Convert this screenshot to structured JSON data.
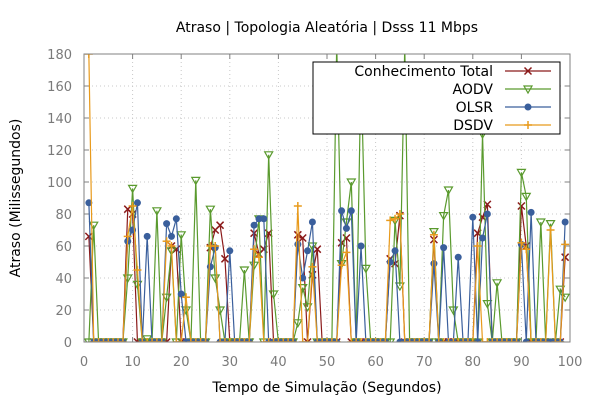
{
  "chart_data": {
    "type": "line",
    "title": "Atraso | Topologia Aleatória | Dsss 11 Mbps",
    "xlabel": "Tempo de Simulação (Segundos)",
    "ylabel": "Atraso (Milissegundos)",
    "xlim": [
      0,
      100
    ],
    "ylim": [
      0,
      180
    ],
    "xticks": [
      0,
      10,
      20,
      30,
      40,
      50,
      60,
      70,
      80,
      90,
      100
    ],
    "yticks": [
      0,
      20,
      40,
      60,
      80,
      100,
      120,
      140,
      160,
      180
    ],
    "grid": true,
    "legend_position": "top-right",
    "series": [
      {
        "name": "Conhecimento Total",
        "color": "#8b1a1a",
        "marker": "x",
        "x": [
          1,
          2,
          3,
          4,
          5,
          6,
          7,
          8,
          9,
          10,
          11,
          12,
          13,
          14,
          15,
          16,
          17,
          18,
          19,
          20,
          21,
          22,
          23,
          24,
          25,
          26,
          27,
          28,
          29,
          30,
          31,
          32,
          33,
          34,
          35,
          36,
          37,
          38,
          39,
          40,
          41,
          42,
          43,
          44,
          45,
          46,
          47,
          48,
          49,
          50,
          51,
          52,
          53,
          54,
          55,
          56,
          57,
          58,
          59,
          60,
          61,
          62,
          63,
          64,
          65,
          66,
          67,
          68,
          69,
          70,
          71,
          72,
          73,
          74,
          75,
          76,
          77,
          78,
          79,
          80,
          81,
          82,
          83,
          84,
          85,
          86,
          87,
          88,
          89,
          90,
          91,
          92,
          93,
          94,
          95,
          96,
          97,
          98,
          99
        ],
        "y": [
          66,
          0,
          0,
          0,
          0,
          0,
          0,
          0,
          83,
          80,
          0,
          0,
          0,
          0,
          0,
          0,
          0,
          60,
          58,
          0,
          0,
          0,
          0,
          0,
          0,
          59,
          70,
          73,
          52,
          0,
          0,
          0,
          0,
          0,
          68,
          55,
          58,
          68,
          0,
          0,
          0,
          0,
          0,
          67,
          65,
          0,
          42,
          58,
          0,
          0,
          0,
          0,
          62,
          65,
          0,
          0,
          0,
          0,
          0,
          0,
          0,
          0,
          52,
          49,
          79,
          0,
          0,
          0,
          0,
          0,
          0,
          64,
          0,
          0,
          0,
          0,
          0,
          0,
          0,
          0,
          68,
          78,
          86,
          0,
          0,
          0,
          0,
          0,
          0,
          85,
          60,
          0,
          0,
          0,
          0,
          0,
          0,
          0,
          53
        ]
      },
      {
        "name": "AODV",
        "color": "#5a9a2e",
        "marker": "triangle-down",
        "x": [
          1,
          2,
          3,
          4,
          5,
          6,
          7,
          8,
          9,
          10,
          11,
          12,
          13,
          14,
          15,
          16,
          17,
          18,
          19,
          20,
          21,
          22,
          23,
          24,
          25,
          26,
          27,
          28,
          29,
          30,
          31,
          32,
          33,
          34,
          35,
          36,
          37,
          38,
          39,
          40,
          41,
          42,
          43,
          44,
          45,
          46,
          47,
          48,
          49,
          50,
          51,
          52,
          53,
          54,
          55,
          56,
          57,
          58,
          59,
          60,
          61,
          62,
          63,
          64,
          65,
          66,
          67,
          68,
          69,
          70,
          71,
          72,
          73,
          74,
          75,
          76,
          77,
          78,
          79,
          80,
          81,
          82,
          83,
          84,
          85,
          86,
          87,
          88,
          89,
          90,
          91,
          92,
          93,
          94,
          95,
          96,
          97,
          98,
          99
        ],
        "y": [
          0,
          73,
          0,
          0,
          0,
          0,
          0,
          0,
          40,
          96,
          36,
          0,
          2,
          0,
          82,
          0,
          28,
          57,
          0,
          67,
          20,
          0,
          101,
          0,
          0,
          83,
          40,
          20,
          0,
          0,
          0,
          0,
          45,
          0,
          48,
          77,
          0,
          117,
          30,
          0,
          0,
          0,
          0,
          12,
          34,
          22,
          60,
          0,
          0,
          0,
          0,
          186,
          49,
          75,
          100,
          0,
          170,
          46,
          0,
          0,
          0,
          0,
          0,
          76,
          35,
          185,
          0,
          0,
          0,
          0,
          0,
          69,
          0,
          79,
          95,
          20,
          0,
          0,
          0,
          0,
          0,
          130,
          24,
          0,
          37,
          0,
          0,
          0,
          0,
          106,
          91,
          0,
          0,
          75,
          0,
          74,
          0,
          33,
          28
        ]
      },
      {
        "name": "OLSR",
        "color": "#3a5f9c",
        "marker": "circle",
        "x": [
          1,
          2,
          3,
          4,
          5,
          6,
          7,
          8,
          9,
          10,
          11,
          12,
          13,
          14,
          15,
          16,
          17,
          18,
          19,
          20,
          21,
          22,
          23,
          24,
          25,
          26,
          27,
          28,
          29,
          30,
          31,
          32,
          33,
          34,
          35,
          36,
          37,
          38,
          39,
          40,
          41,
          42,
          43,
          44,
          45,
          46,
          47,
          48,
          49,
          50,
          51,
          52,
          53,
          54,
          55,
          56,
          57,
          58,
          59,
          60,
          61,
          62,
          63,
          64,
          65,
          66,
          67,
          68,
          69,
          70,
          71,
          72,
          73,
          74,
          75,
          76,
          77,
          78,
          79,
          80,
          81,
          82,
          83,
          84,
          85,
          86,
          87,
          88,
          89,
          90,
          91,
          92,
          93,
          94,
          95,
          96,
          97,
          98,
          99
        ],
        "y": [
          87,
          0,
          0,
          0,
          0,
          0,
          0,
          0,
          63,
          70,
          87,
          0,
          66,
          0,
          0,
          0,
          74,
          66,
          77,
          30,
          0,
          0,
          0,
          0,
          0,
          47,
          59,
          0,
          0,
          57,
          0,
          0,
          0,
          0,
          73,
          77,
          77,
          0,
          0,
          0,
          0,
          0,
          0,
          61,
          40,
          57,
          75,
          0,
          0,
          0,
          0,
          0,
          82,
          71,
          82,
          0,
          60,
          0,
          0,
          0,
          0,
          0,
          50,
          57,
          0,
          0,
          0,
          0,
          0,
          0,
          0,
          49,
          0,
          59,
          0,
          0,
          53,
          0,
          0,
          78,
          0,
          65,
          80,
          0,
          0,
          0,
          0,
          0,
          0,
          61,
          0,
          81,
          0,
          0,
          0,
          0,
          0,
          0,
          75
        ]
      },
      {
        "name": "DSDV",
        "color": "#e89a1c",
        "marker": "plus",
        "x": [
          1,
          2,
          3,
          4,
          5,
          6,
          7,
          8,
          9,
          10,
          11,
          12,
          13,
          14,
          15,
          16,
          17,
          18,
          19,
          20,
          21,
          22,
          23,
          24,
          25,
          26,
          27,
          28,
          29,
          30,
          31,
          32,
          33,
          34,
          35,
          36,
          37,
          38,
          39,
          40,
          41,
          42,
          43,
          44,
          45,
          46,
          47,
          48,
          49,
          50,
          51,
          52,
          53,
          54,
          55,
          56,
          57,
          58,
          59,
          60,
          61,
          62,
          63,
          64,
          65,
          66,
          67,
          68,
          69,
          70,
          71,
          72,
          73,
          74,
          75,
          76,
          77,
          78,
          79,
          80,
          81,
          82,
          83,
          84,
          85,
          86,
          87,
          88,
          89,
          90,
          91,
          92,
          93,
          94,
          95,
          96,
          97,
          98,
          99
        ],
        "y": [
          180,
          0,
          0,
          0,
          0,
          0,
          0,
          0,
          66,
          85,
          45,
          0,
          0,
          0,
          0,
          0,
          63,
          60,
          0,
          0,
          28,
          0,
          0,
          0,
          0,
          60,
          60,
          0,
          0,
          0,
          0,
          0,
          0,
          0,
          58,
          53,
          0,
          0,
          0,
          0,
          0,
          0,
          0,
          85,
          0,
          0,
          47,
          0,
          0,
          0,
          0,
          0,
          48,
          56,
          0,
          0,
          0,
          0,
          0,
          0,
          0,
          0,
          76,
          77,
          80,
          0,
          0,
          0,
          0,
          0,
          0,
          67,
          0,
          0,
          0,
          0,
          0,
          0,
          0,
          0,
          60,
          0,
          0,
          0,
          0,
          0,
          0,
          0,
          0,
          62,
          58,
          0,
          0,
          0,
          0,
          70,
          0,
          0,
          61
        ]
      }
    ]
  }
}
